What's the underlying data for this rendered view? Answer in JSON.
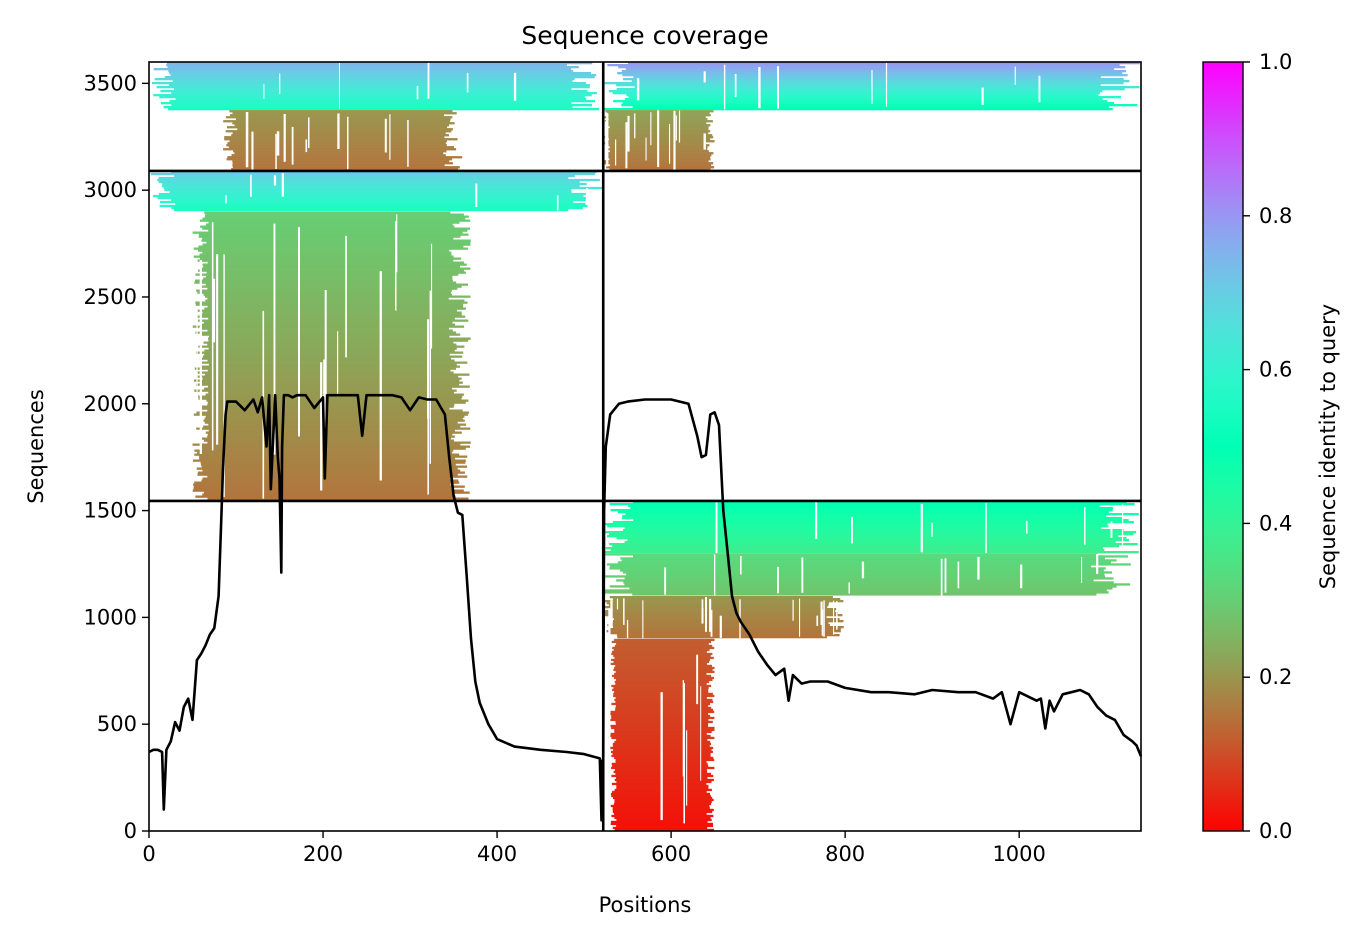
{
  "chart_data": {
    "type": "heatmap",
    "title": "Sequence coverage",
    "xlabel": "Positions",
    "ylabel": "Sequences",
    "xlim": [
      0,
      1140
    ],
    "ylim": [
      0,
      3600
    ],
    "x_ticks": [
      0,
      200,
      400,
      600,
      800,
      1000
    ],
    "y_ticks": [
      0,
      500,
      1000,
      1500,
      2000,
      2500,
      3000,
      3500
    ],
    "grid": false,
    "colorbar": {
      "label": "Sequence identity to query",
      "range": [
        0,
        1
      ],
      "colormap": "rainbow_r",
      "ticks": [
        "0.0",
        "0.2",
        "0.4",
        "0.6",
        "0.8",
        "1.0"
      ]
    },
    "block_boundaries": {
      "x": [
        522
      ],
      "y": [
        1545,
        3090
      ]
    },
    "blocks": [
      {
        "x": [
          0,
          522
        ],
        "y": [
          3090,
          3600
        ],
        "segments": [
          {
            "y": [
              3375,
              3600
            ],
            "x": [
              0,
              522
            ],
            "identity_from": 0.55,
            "identity_to": 0.75,
            "density": 0.95
          },
          {
            "y": [
              3090,
              3375
            ],
            "x": [
              85,
              360
            ],
            "identity_from": 0.15,
            "identity_to": 0.2,
            "density": 0.9
          }
        ]
      },
      {
        "x": [
          522,
          1140
        ],
        "y": [
          3090,
          3600
        ],
        "segments": [
          {
            "y": [
              3375,
              3600
            ],
            "x": [
              522,
              1140
            ],
            "identity_from": 0.5,
            "identity_to": 0.8,
            "density": 0.92
          },
          {
            "y": [
              3090,
              3375
            ],
            "x": [
              522,
              650
            ],
            "identity_from": 0.15,
            "identity_to": 0.22,
            "density": 0.9
          }
        ]
      },
      {
        "x": [
          0,
          522
        ],
        "y": [
          1545,
          3090
        ],
        "segments": [
          {
            "y": [
              2900,
              3090
            ],
            "x": [
              0,
              522
            ],
            "identity_from": 0.55,
            "identity_to": 0.7,
            "density": 0.95
          },
          {
            "y": [
              1545,
              2900
            ],
            "x": [
              50,
              370
            ],
            "identity_from": 0.15,
            "identity_to": 0.3,
            "density": 0.85
          }
        ]
      },
      {
        "x": [
          522,
          1140
        ],
        "y": [
          0,
          1545
        ],
        "segments": [
          {
            "y": [
              1300,
              1545
            ],
            "x": [
              522,
              1140
            ],
            "identity_from": 0.38,
            "identity_to": 0.5,
            "density": 0.92
          },
          {
            "y": [
              1100,
              1300
            ],
            "x": [
              522,
              1130
            ],
            "identity_from": 0.28,
            "identity_to": 0.33,
            "density": 0.9
          },
          {
            "y": [
              900,
              1100
            ],
            "x": [
              522,
              800
            ],
            "identity_from": 0.15,
            "identity_to": 0.2,
            "density": 0.85
          },
          {
            "y": [
              0,
              900
            ],
            "x": [
              530,
              650
            ],
            "identity_from": 0.02,
            "identity_to": 0.12,
            "density": 0.95
          }
        ]
      }
    ],
    "coverage_line": {
      "x": [
        0,
        5,
        10,
        15,
        17,
        20,
        25,
        30,
        35,
        40,
        45,
        50,
        55,
        60,
        65,
        70,
        75,
        80,
        83,
        85,
        88,
        90,
        100,
        110,
        120,
        125,
        130,
        135,
        138,
        140,
        145,
        148,
        150,
        152,
        153,
        155,
        160,
        165,
        170,
        180,
        190,
        200,
        202,
        205,
        210,
        220,
        230,
        240,
        245,
        250,
        260,
        270,
        280,
        290,
        300,
        310,
        320,
        330,
        340,
        345,
        350,
        355,
        360,
        365,
        370,
        375,
        380,
        390,
        400,
        420,
        450,
        480,
        500,
        518,
        520,
        521,
        522,
        523,
        525,
        530,
        540,
        550,
        570,
        600,
        620,
        630,
        635,
        640,
        645,
        650,
        655,
        660,
        665,
        670,
        675,
        680,
        690,
        700,
        710,
        720,
        730,
        735,
        740,
        750,
        760,
        780,
        800,
        830,
        850,
        880,
        900,
        930,
        950,
        970,
        980,
        990,
        1000,
        1010,
        1020,
        1025,
        1030,
        1035,
        1040,
        1050,
        1060,
        1070,
        1080,
        1090,
        1100,
        1110,
        1120,
        1130,
        1135,
        1140
      ],
      "y": [
        370,
        380,
        380,
        370,
        100,
        380,
        420,
        510,
        470,
        580,
        620,
        520,
        800,
        830,
        870,
        920,
        950,
        1100,
        1450,
        1700,
        1950,
        2010,
        2010,
        1970,
        2020,
        1960,
        2030,
        1800,
        2040,
        1600,
        2040,
        1750,
        1650,
        1210,
        1800,
        2040,
        2040,
        2030,
        2040,
        2040,
        1980,
        2030,
        1650,
        2040,
        2040,
        2040,
        2040,
        2040,
        1850,
        2040,
        2040,
        2040,
        2040,
        2030,
        1970,
        2030,
        2020,
        2020,
        1950,
        1750,
        1570,
        1490,
        1480,
        1200,
        900,
        700,
        600,
        500,
        430,
        395,
        380,
        370,
        360,
        340,
        50,
        330,
        320,
        1500,
        1800,
        1950,
        2000,
        2010,
        2020,
        2020,
        2000,
        1850,
        1750,
        1760,
        1950,
        1960,
        1900,
        1500,
        1300,
        1100,
        1020,
        980,
        920,
        840,
        780,
        730,
        760,
        610,
        730,
        690,
        700,
        700,
        670,
        650,
        650,
        640,
        660,
        650,
        650,
        620,
        650,
        500,
        650,
        630,
        610,
        620,
        480,
        610,
        560,
        640,
        650,
        660,
        640,
        580,
        540,
        520,
        450,
        420,
        400,
        350
      ]
    }
  }
}
